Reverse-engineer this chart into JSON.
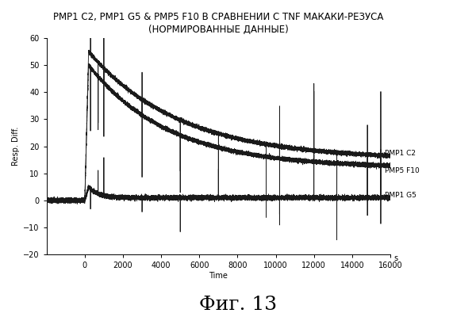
{
  "title_line1": "PMP1 C2, PMP1 G5 & PMP5 F10 В СРАВНЕНИИ С TNF МАКАКИ-РЕЗУСА",
  "title_line2": "(НОРМИРОВАННЫЕ ДАННЫЕ)",
  "xlabel": "Time",
  "xlabel_unit": "s",
  "ylabel": "Resp. Diff.",
  "xlim": [
    -2000,
    16000
  ],
  "ylim": [
    -20,
    60
  ],
  "yticks": [
    -20,
    -10,
    0,
    10,
    20,
    30,
    40,
    50,
    60
  ],
  "xticks": [
    0,
    2000,
    4000,
    6000,
    8000,
    10000,
    12000,
    14000,
    16000
  ],
  "figure_caption": "Фиг. 13",
  "background_color": "#ffffff",
  "line_color": "#000000",
  "label_C2": "PMP1 C2",
  "label_F10": "PMP5 F10",
  "label_G5": "PMP1 G5",
  "c2_peak": 55,
  "c2_baseline": 15,
  "c2_tau": 4800,
  "f10_peak": 50,
  "f10_baseline": 12,
  "f10_tau": 4200,
  "g5_peak": 5,
  "g5_baseline": 1.0,
  "spike_times": [
    300,
    700,
    1000,
    3000,
    5000,
    7000,
    9500,
    10200,
    12000,
    13200,
    14800,
    15500
  ],
  "title_fontsize": 8.5,
  "tick_fontsize": 7,
  "label_fontsize": 7,
  "caption_fontsize": 18
}
